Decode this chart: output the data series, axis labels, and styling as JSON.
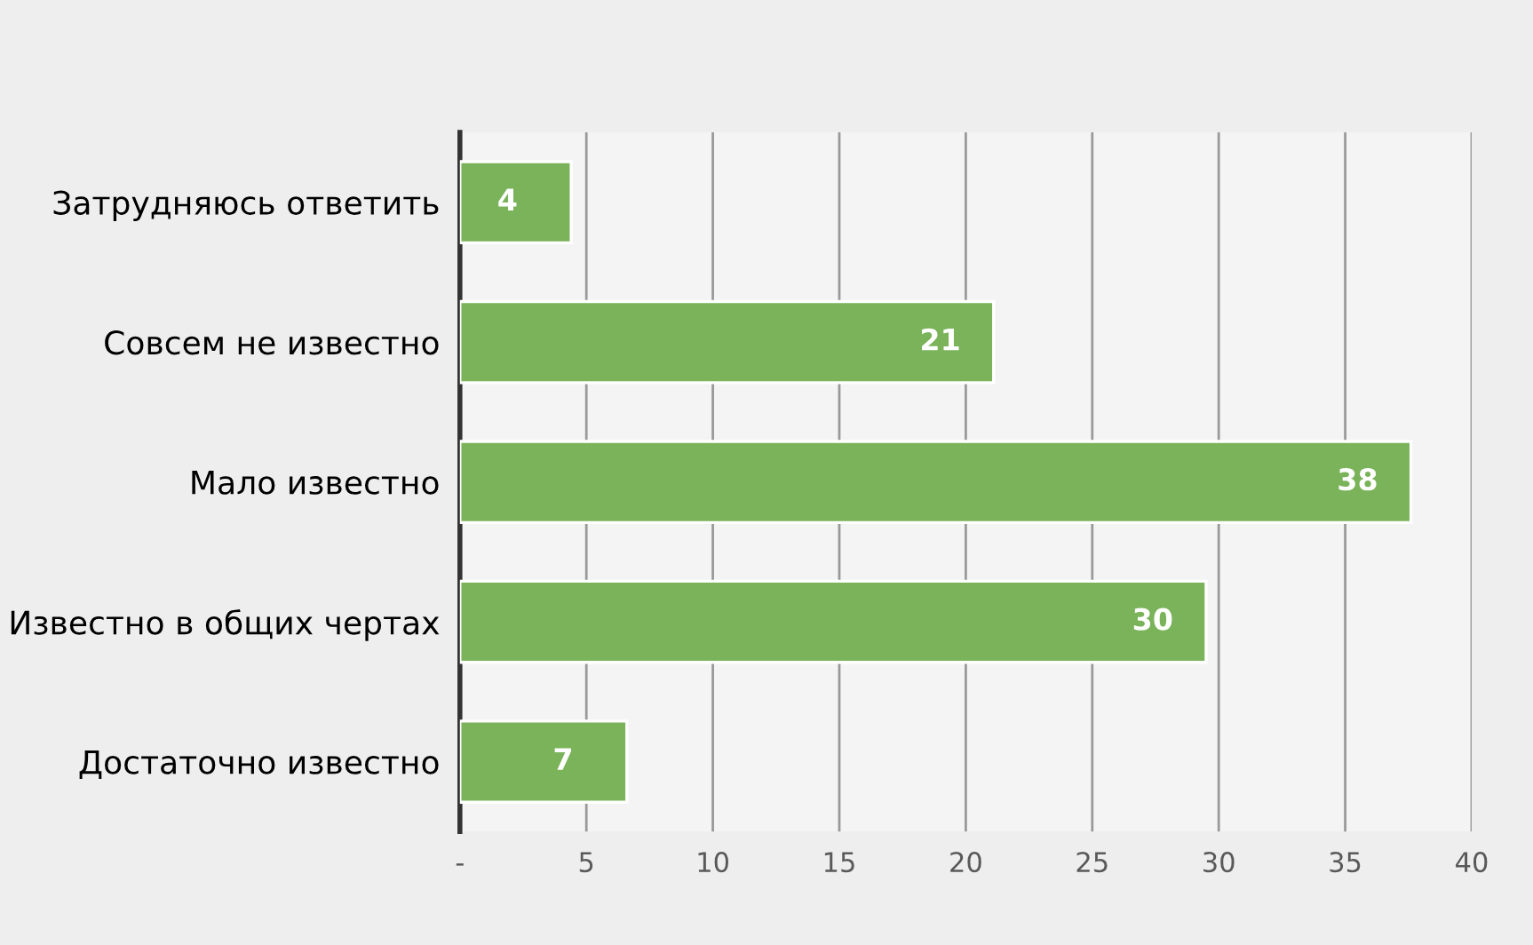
{
  "chart_data": {
    "type": "bar",
    "orientation": "horizontal",
    "categories": [
      "Затрудняюсь ответить",
      "Совсем не известно",
      "Мало известно",
      "Известно в общих чертах",
      "Достаточно известно"
    ],
    "values": [
      4.4,
      21.1,
      37.6,
      29.5,
      6.6
    ],
    "value_labels": [
      "4",
      "21",
      "38",
      "30",
      "7"
    ],
    "color": "#7ab35a",
    "xlim": [
      0,
      40
    ],
    "xticks": [
      {
        "value": 0,
        "label": "-"
      },
      5,
      10,
      15,
      20,
      25,
      30,
      35,
      40
    ],
    "grid": "x"
  }
}
